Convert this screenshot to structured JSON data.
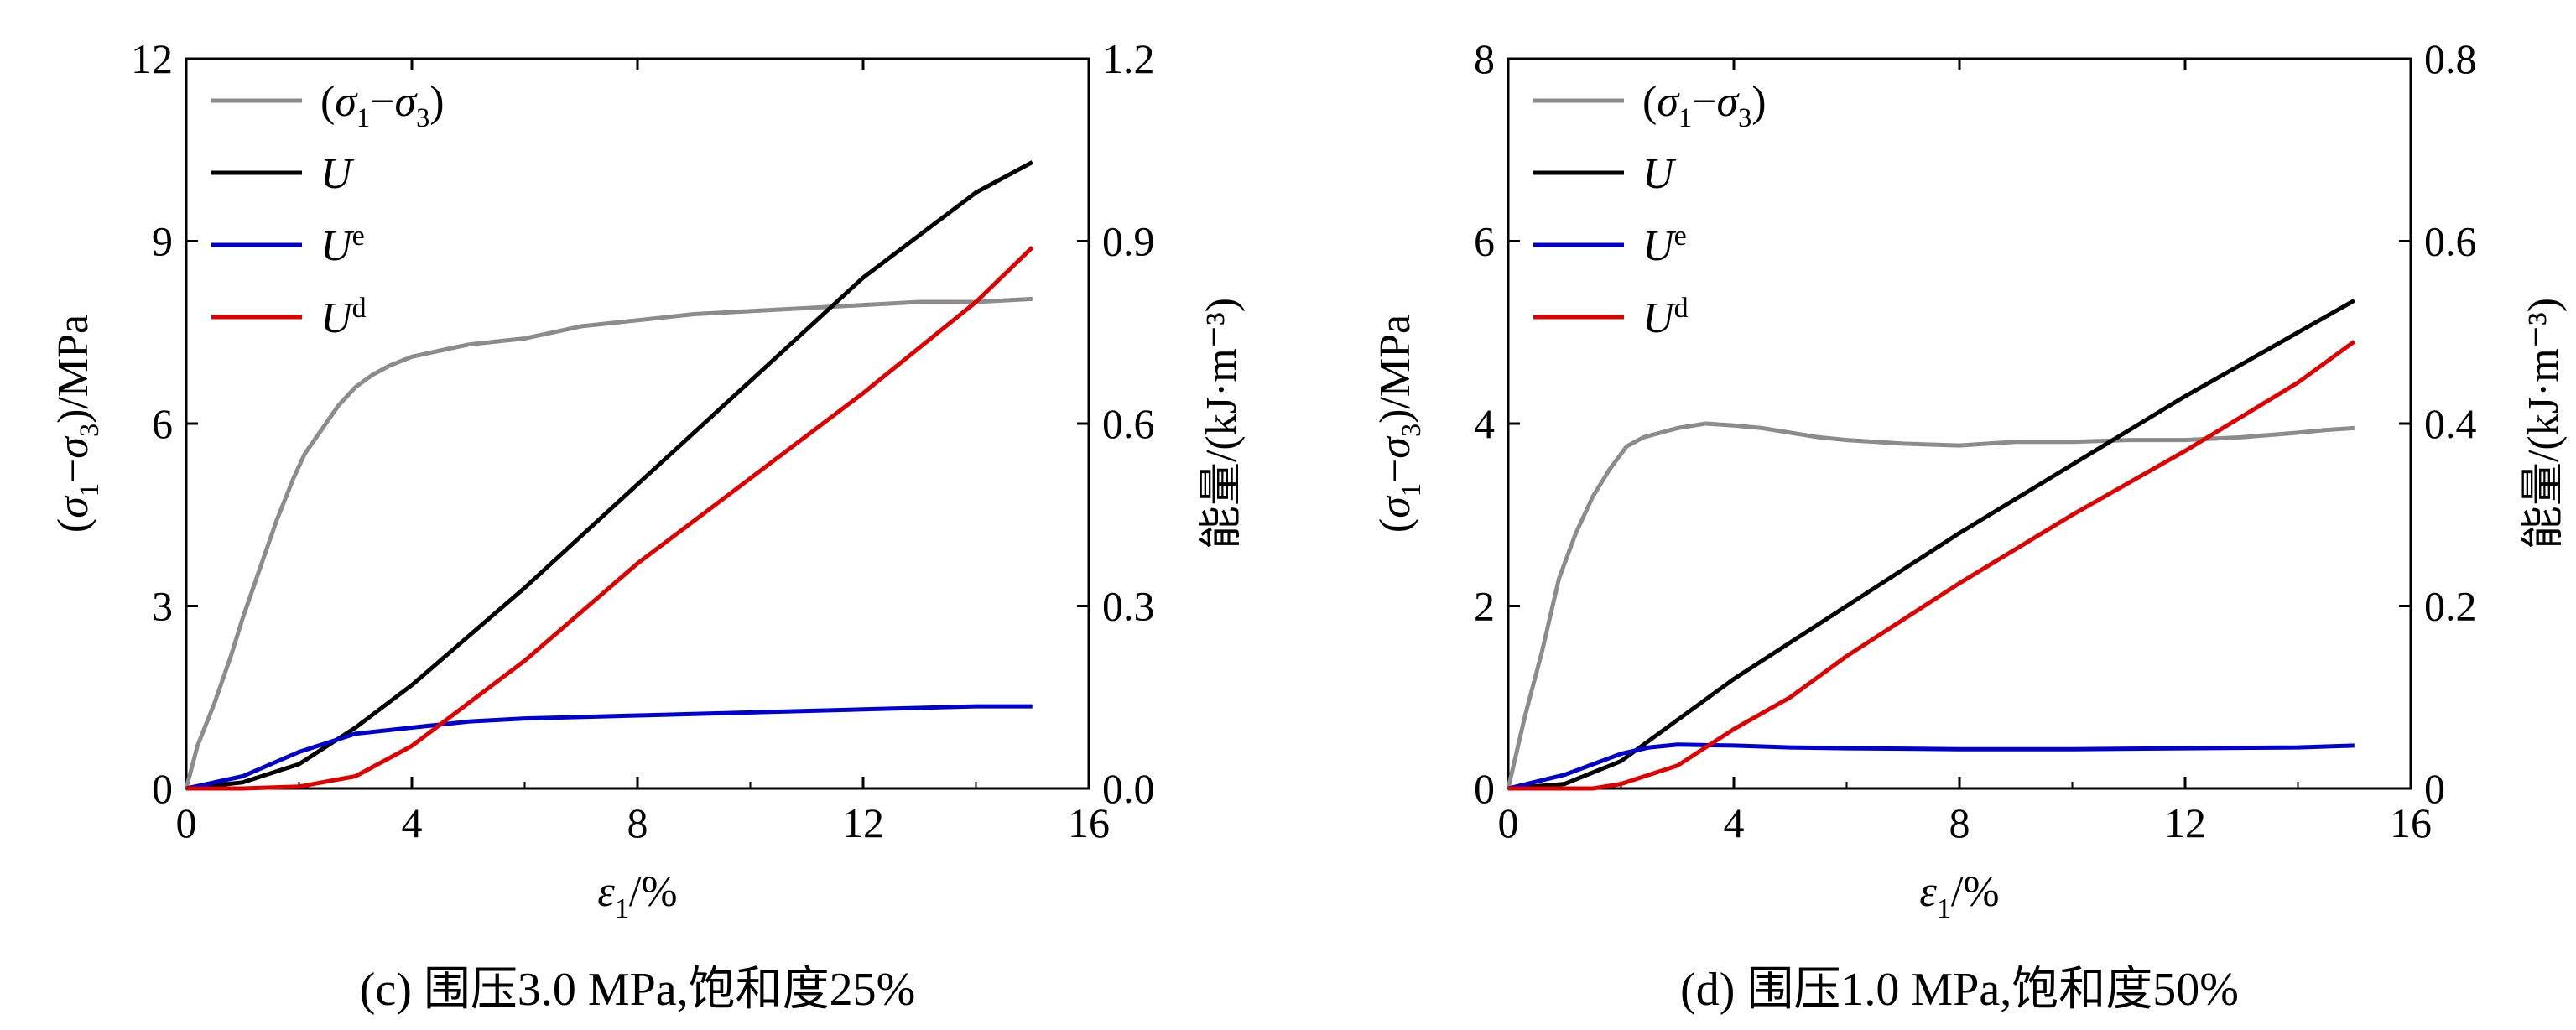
{
  "chart_data": [
    {
      "type": "line",
      "caption": "(c) 围压3.0 MPa,饱和度25%",
      "xlabel_symbol": "ε",
      "xlabel_sub": "1",
      "xlabel_unit": "/%",
      "ylabel": "(σ1−σ3)/MPa",
      "y2label": "能量/(kJ·m⁻³)",
      "xlim": [
        0,
        16
      ],
      "ylim": [
        0,
        12
      ],
      "y2lim": [
        0,
        1.2
      ],
      "xticks": [
        "0",
        "4",
        "8",
        "12",
        "16"
      ],
      "yticks": [
        "0",
        "3",
        "6",
        "9",
        "12"
      ],
      "y2ticks": [
        "0.0",
        "0.3",
        "0.6",
        "0.9",
        "1.2"
      ],
      "legend_placement": "top-left",
      "series": [
        {
          "name": "(σ1−σ3)",
          "axis": "left",
          "color": "#8c8c8c",
          "x": [
            0,
            0.2,
            0.5,
            0.8,
            1.0,
            1.3,
            1.6,
            1.9,
            2.1,
            2.4,
            2.7,
            3.0,
            3.3,
            3.6,
            4.0,
            4.5,
            5.0,
            5.5,
            6.0,
            6.5,
            7.0,
            8.0,
            9.0,
            10.0,
            11.0,
            12.0,
            13.0,
            14.0,
            15.0
          ],
          "y": [
            0,
            0.7,
            1.4,
            2.2,
            2.8,
            3.6,
            4.4,
            5.1,
            5.5,
            5.9,
            6.3,
            6.6,
            6.8,
            6.95,
            7.1,
            7.2,
            7.3,
            7.35,
            7.4,
            7.5,
            7.6,
            7.7,
            7.8,
            7.85,
            7.9,
            7.95,
            8.0,
            8.0,
            8.05
          ]
        },
        {
          "name": "U",
          "axis": "right",
          "color": "#000000",
          "x": [
            0,
            1.0,
            2.0,
            3.0,
            4.0,
            6.0,
            8.0,
            10.0,
            12.0,
            14.0,
            15.0
          ],
          "y": [
            0,
            0.01,
            0.04,
            0.1,
            0.17,
            0.33,
            0.5,
            0.67,
            0.84,
            0.98,
            1.03
          ]
        },
        {
          "name": "U",
          "sup": "e",
          "axis": "right",
          "color": "#0000d0",
          "x": [
            0,
            1.0,
            2.0,
            3.0,
            4.0,
            5.0,
            6.0,
            8.0,
            10.0,
            12.0,
            14.0,
            15.0
          ],
          "y": [
            0,
            0.02,
            0.06,
            0.09,
            0.1,
            0.11,
            0.115,
            0.12,
            0.125,
            0.13,
            0.135,
            0.135
          ]
        },
        {
          "name": "U",
          "sup": "d",
          "axis": "right",
          "color": "#e00000",
          "x": [
            0,
            1.0,
            2.0,
            3.0,
            4.0,
            5.0,
            6.0,
            8.0,
            10.0,
            12.0,
            14.0,
            15.0
          ],
          "y": [
            0,
            0,
            0.003,
            0.02,
            0.07,
            0.14,
            0.21,
            0.37,
            0.51,
            0.65,
            0.8,
            0.89
          ]
        }
      ]
    },
    {
      "type": "line",
      "caption": "(d) 围压1.0 MPa,饱和度50%",
      "xlabel_symbol": "ε",
      "xlabel_sub": "1",
      "xlabel_unit": "/%",
      "ylabel": "(σ1−σ3)/MPa",
      "y2label": "能量/(kJ·m⁻³)",
      "xlim": [
        0,
        16
      ],
      "ylim": [
        0,
        8
      ],
      "y2lim": [
        0,
        0.8
      ],
      "xticks": [
        "0",
        "4",
        "8",
        "12",
        "16"
      ],
      "yticks": [
        "0",
        "2",
        "4",
        "6",
        "8"
      ],
      "y2ticks": [
        "0",
        "0.2",
        "0.4",
        "0.6",
        "0.8"
      ],
      "legend_placement": "top-left",
      "series": [
        {
          "name": "(σ1−σ3)",
          "axis": "left",
          "color": "#8c8c8c",
          "x": [
            0,
            0.3,
            0.6,
            0.9,
            1.2,
            1.5,
            1.8,
            2.1,
            2.4,
            3.0,
            3.5,
            4.0,
            4.5,
            5.0,
            5.5,
            6.0,
            7.0,
            8.0,
            8.5,
            9.0,
            10.0,
            11.0,
            12.0,
            13.0,
            14.0,
            14.5,
            15.0
          ],
          "y": [
            0,
            0.8,
            1.5,
            2.3,
            2.8,
            3.2,
            3.5,
            3.75,
            3.85,
            3.95,
            4.0,
            3.98,
            3.95,
            3.9,
            3.85,
            3.82,
            3.78,
            3.76,
            3.78,
            3.8,
            3.8,
            3.82,
            3.82,
            3.85,
            3.9,
            3.93,
            3.95
          ]
        },
        {
          "name": "U",
          "axis": "right",
          "color": "#000000",
          "x": [
            0,
            1.0,
            2.0,
            3.0,
            4.0,
            6.0,
            8.0,
            10.0,
            12.0,
            14.0,
            15.0
          ],
          "y": [
            0,
            0.005,
            0.03,
            0.075,
            0.12,
            0.2,
            0.28,
            0.355,
            0.43,
            0.5,
            0.535
          ]
        },
        {
          "name": "U",
          "sup": "e",
          "axis": "right",
          "color": "#0000d0",
          "x": [
            0,
            1.0,
            2.0,
            2.5,
            3.0,
            4.0,
            5.0,
            6.0,
            8.0,
            10.0,
            12.0,
            14.0,
            15.0
          ],
          "y": [
            0,
            0.015,
            0.038,
            0.045,
            0.048,
            0.047,
            0.045,
            0.044,
            0.043,
            0.043,
            0.044,
            0.045,
            0.047
          ]
        },
        {
          "name": "U",
          "sup": "d",
          "axis": "right",
          "color": "#e00000",
          "x": [
            0,
            1.0,
            1.5,
            2.0,
            3.0,
            4.0,
            5.0,
            6.0,
            8.0,
            10.0,
            12.0,
            14.0,
            15.0
          ],
          "y": [
            0,
            0,
            0,
            0.005,
            0.025,
            0.065,
            0.1,
            0.145,
            0.225,
            0.3,
            0.37,
            0.445,
            0.49
          ]
        }
      ]
    }
  ]
}
